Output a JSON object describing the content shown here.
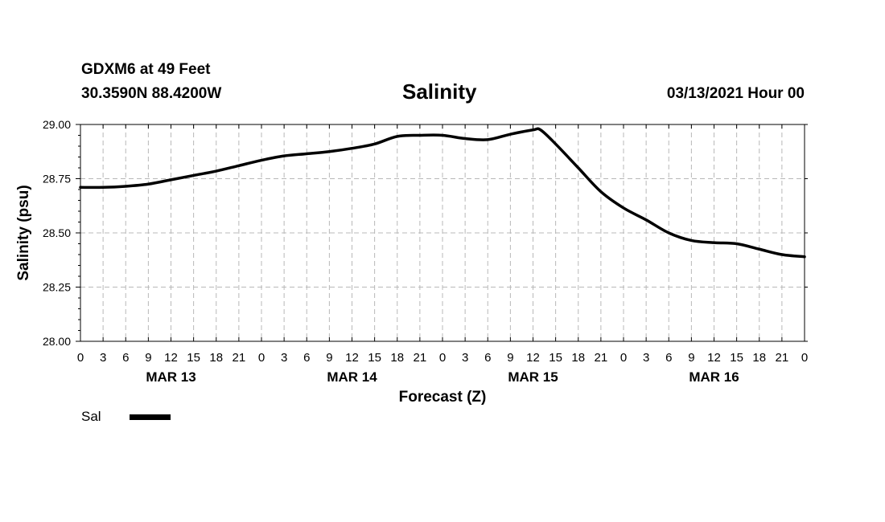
{
  "header": {
    "station": "GDXM6 at 49 Feet",
    "coordinates": "30.3590N 88.4200W",
    "title": "Salinity",
    "timestamp": "03/13/2021 Hour 00"
  },
  "legend": {
    "label": "Sal",
    "color": "#000000"
  },
  "chart_data": {
    "type": "line",
    "title": "Salinity",
    "xlabel": "Forecast (Z)",
    "ylabel": "Salinity (psu)",
    "xlim": [
      0,
      96
    ],
    "ylim": [
      28.0,
      29.0
    ],
    "yticks": [
      "28.00",
      "28.25",
      "28.50",
      "28.75",
      "29.00"
    ],
    "xtick_labels": [
      "0",
      "3",
      "6",
      "9",
      "12",
      "15",
      "18",
      "21",
      "0",
      "3",
      "6",
      "9",
      "12",
      "15",
      "18",
      "21",
      "0",
      "3",
      "6",
      "9",
      "12",
      "15",
      "18",
      "21",
      "0",
      "3",
      "6",
      "9",
      "12",
      "15",
      "18",
      "21",
      "0"
    ],
    "day_labels": [
      {
        "label": "MAR 13",
        "hour": 12
      },
      {
        "label": "MAR 14",
        "hour": 36
      },
      {
        "label": "MAR 15",
        "hour": 60
      },
      {
        "label": "MAR 16",
        "hour": 84
      }
    ],
    "grid": true,
    "series": [
      {
        "name": "Sal",
        "color": "#000000",
        "x": [
          0,
          3,
          6,
          9,
          12,
          15,
          18,
          21,
          24,
          27,
          30,
          33,
          36,
          39,
          42,
          45,
          48,
          51,
          54,
          57,
          60,
          61,
          63,
          66,
          69,
          72,
          75,
          78,
          81,
          84,
          87,
          90,
          93,
          96
        ],
        "values": [
          28.71,
          28.71,
          28.715,
          28.725,
          28.745,
          28.765,
          28.785,
          28.81,
          28.835,
          28.855,
          28.865,
          28.875,
          28.89,
          28.91,
          28.945,
          28.95,
          28.95,
          28.935,
          28.93,
          28.955,
          28.975,
          28.975,
          28.91,
          28.8,
          28.69,
          28.615,
          28.56,
          28.5,
          28.465,
          28.455,
          28.45,
          28.425,
          28.4,
          28.39
        ]
      }
    ]
  }
}
